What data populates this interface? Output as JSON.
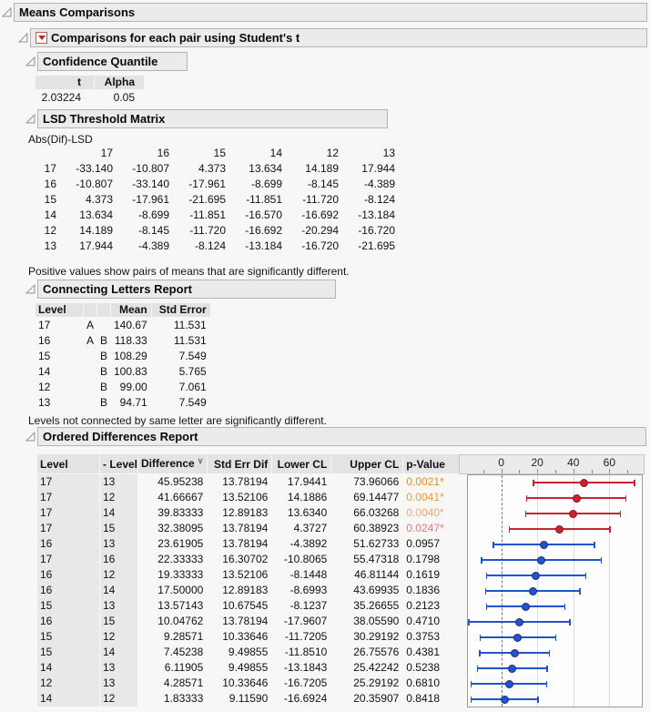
{
  "icons": {
    "disclosure_open": "open-disclosure-triangle",
    "red_triangle_menu": "▼",
    "sort_descending": "∨"
  },
  "colors": {
    "page_bg": "#f7f7f6",
    "panel_bg": "#ebebeb",
    "panel_border": "#b4b4b4",
    "header_cell_bg": "#e3e3e3",
    "label_col_bg": "#e8e8e8",
    "significant_red": "#cb2431",
    "red_dot_border": "#7e141f",
    "nonsignificant_blue": "#2353cc",
    "blue_dot_border": "#142f7a",
    "p_value_colors": [
      "#e78c1e",
      "#ee9a3c",
      "#f3a770",
      "#f67082"
    ]
  },
  "outline1": {
    "title": "Means Comparisons"
  },
  "outline2": {
    "title": "Comparisons for each pair using Student's t"
  },
  "confidence_quantile": {
    "title": "Confidence Quantile",
    "columns": [
      "t",
      "Alpha"
    ],
    "rows": [
      [
        "2.03224",
        "0.05"
      ]
    ]
  },
  "lsd_matrix": {
    "title": "LSD Threshold Matrix",
    "label": "Abs(Dif)-LSD",
    "col_headers": [
      "17",
      "16",
      "15",
      "14",
      "12",
      "13"
    ],
    "rows": [
      {
        "label": "17",
        "values": [
          "-33.140",
          "-10.807",
          "4.373",
          "13.634",
          "14.189",
          "17.944"
        ]
      },
      {
        "label": "16",
        "values": [
          "-10.807",
          "-33.140",
          "-17.961",
          "-8.699",
          "-8.145",
          "-4.389"
        ]
      },
      {
        "label": "15",
        "values": [
          "4.373",
          "-17.961",
          "-21.695",
          "-11.851",
          "-11.720",
          "-8.124"
        ]
      },
      {
        "label": "14",
        "values": [
          "13.634",
          "-8.699",
          "-11.851",
          "-16.570",
          "-16.692",
          "-13.184"
        ]
      },
      {
        "label": "12",
        "values": [
          "14.189",
          "-8.145",
          "-11.720",
          "-16.692",
          "-20.294",
          "-16.720"
        ]
      },
      {
        "label": "13",
        "values": [
          "17.944",
          "-4.389",
          "-8.124",
          "-13.184",
          "-16.720",
          "-21.695"
        ]
      }
    ],
    "note": "Positive values show pairs of means that are significantly different."
  },
  "connecting_letters": {
    "title": "Connecting Letters Report",
    "columns": [
      "Level",
      "",
      "",
      "Mean",
      "Std Error"
    ],
    "rows": [
      {
        "level": "17",
        "letter1": "A",
        "letter2": "",
        "mean": "140.67",
        "std_error": "11.531"
      },
      {
        "level": "16",
        "letter1": "A",
        "letter2": "B",
        "mean": "118.33",
        "std_error": "11.531"
      },
      {
        "level": "15",
        "letter1": "",
        "letter2": "B",
        "mean": "108.29",
        "std_error": "7.549"
      },
      {
        "level": "14",
        "letter1": "",
        "letter2": "B",
        "mean": "100.83",
        "std_error": "5.765"
      },
      {
        "level": "12",
        "letter1": "",
        "letter2": "B",
        "mean": "99.00",
        "std_error": "7.061"
      },
      {
        "level": "13",
        "letter1": "",
        "letter2": "B",
        "mean": "94.71",
        "std_error": "7.549"
      }
    ],
    "note": "Levels not connected by same letter are significantly different."
  },
  "ordered_differences": {
    "title": "Ordered Differences Report",
    "columns": [
      "Level",
      "- Level",
      "Difference",
      "Std Err Dif",
      "Lower CL",
      "Upper CL",
      "p-Value"
    ],
    "sorted_column": "Difference",
    "rows": [
      {
        "level": "17",
        "minus_level": "13",
        "difference": "45.95238",
        "std_err_dif": "13.78194",
        "lower_cl": "17.9441",
        "upper_cl": "73.96066",
        "p_value": "0.0021*",
        "p_color": "#e78c1e"
      },
      {
        "level": "17",
        "minus_level": "12",
        "difference": "41.66667",
        "std_err_dif": "13.52106",
        "lower_cl": "14.1886",
        "upper_cl": "69.14477",
        "p_value": "0.0041*",
        "p_color": "#ee9a3c"
      },
      {
        "level": "17",
        "minus_level": "14",
        "difference": "39.83333",
        "std_err_dif": "12.89183",
        "lower_cl": "13.6340",
        "upper_cl": "66.03268",
        "p_value": "0.0040*",
        "p_color": "#f3a770"
      },
      {
        "level": "17",
        "minus_level": "15",
        "difference": "32.38095",
        "std_err_dif": "13.78194",
        "lower_cl": "4.3727",
        "upper_cl": "60.38923",
        "p_value": "0.0247*",
        "p_color": "#f67082"
      },
      {
        "level": "16",
        "minus_level": "13",
        "difference": "23.61905",
        "std_err_dif": "13.78194",
        "lower_cl": "-4.3892",
        "upper_cl": "51.62733",
        "p_value": "0.0957",
        "p_color": null
      },
      {
        "level": "17",
        "minus_level": "16",
        "difference": "22.33333",
        "std_err_dif": "16.30702",
        "lower_cl": "-10.8065",
        "upper_cl": "55.47318",
        "p_value": "0.1798",
        "p_color": null
      },
      {
        "level": "16",
        "minus_level": "12",
        "difference": "19.33333",
        "std_err_dif": "13.52106",
        "lower_cl": "-8.1448",
        "upper_cl": "46.81144",
        "p_value": "0.1619",
        "p_color": null
      },
      {
        "level": "16",
        "minus_level": "14",
        "difference": "17.50000",
        "std_err_dif": "12.89183",
        "lower_cl": "-8.6993",
        "upper_cl": "43.69935",
        "p_value": "0.1836",
        "p_color": null
      },
      {
        "level": "15",
        "minus_level": "13",
        "difference": "13.57143",
        "std_err_dif": "10.67545",
        "lower_cl": "-8.1237",
        "upper_cl": "35.26655",
        "p_value": "0.2123",
        "p_color": null
      },
      {
        "level": "16",
        "minus_level": "15",
        "difference": "10.04762",
        "std_err_dif": "13.78194",
        "lower_cl": "-17.9607",
        "upper_cl": "38.05590",
        "p_value": "0.4710",
        "p_color": null
      },
      {
        "level": "15",
        "minus_level": "12",
        "difference": "9.28571",
        "std_err_dif": "10.33646",
        "lower_cl": "-11.7205",
        "upper_cl": "30.29192",
        "p_value": "0.3753",
        "p_color": null
      },
      {
        "level": "15",
        "minus_level": "14",
        "difference": "7.45238",
        "std_err_dif": "9.49855",
        "lower_cl": "-11.8510",
        "upper_cl": "26.75576",
        "p_value": "0.4381",
        "p_color": null
      },
      {
        "level": "14",
        "minus_level": "13",
        "difference": "6.11905",
        "std_err_dif": "9.49855",
        "lower_cl": "-13.1843",
        "upper_cl": "25.42242",
        "p_value": "0.5238",
        "p_color": null
      },
      {
        "level": "12",
        "minus_level": "13",
        "difference": "4.28571",
        "std_err_dif": "10.33646",
        "lower_cl": "-16.7205",
        "upper_cl": "25.29192",
        "p_value": "0.6810",
        "p_color": null
      },
      {
        "level": "14",
        "minus_level": "12",
        "difference": "1.83333",
        "std_err_dif": "9.11590",
        "lower_cl": "-16.6924",
        "upper_cl": "20.35907",
        "p_value": "0.8418",
        "p_color": null
      }
    ]
  },
  "chart_data": {
    "type": "interval",
    "title": "Student's t pairwise mean-difference confidence intervals",
    "xlim": [
      -18.5,
      78
    ],
    "x_ticks_labeled": [
      0,
      20,
      40,
      60
    ],
    "x_ticks_minor": [
      -10,
      10,
      30,
      50,
      70
    ],
    "gridlines": [
      20,
      40,
      60
    ],
    "reference_line": 0,
    "legend_position": "none",
    "rows": [
      {
        "pair": "17-13",
        "difference": 45.95238,
        "lower": 17.9441,
        "upper": 73.96066,
        "significant": true
      },
      {
        "pair": "17-12",
        "difference": 41.66667,
        "lower": 14.1886,
        "upper": 69.14477,
        "significant": true
      },
      {
        "pair": "17-14",
        "difference": 39.83333,
        "lower": 13.634,
        "upper": 66.03268,
        "significant": true
      },
      {
        "pair": "17-15",
        "difference": 32.38095,
        "lower": 4.3727,
        "upper": 60.38923,
        "significant": true
      },
      {
        "pair": "16-13",
        "difference": 23.61905,
        "lower": -4.3892,
        "upper": 51.62733,
        "significant": false
      },
      {
        "pair": "17-16",
        "difference": 22.33333,
        "lower": -10.8065,
        "upper": 55.47318,
        "significant": false
      },
      {
        "pair": "16-12",
        "difference": 19.33333,
        "lower": -8.1448,
        "upper": 46.81144,
        "significant": false
      },
      {
        "pair": "16-14",
        "difference": 17.5,
        "lower": -8.6993,
        "upper": 43.69935,
        "significant": false
      },
      {
        "pair": "15-13",
        "difference": 13.57143,
        "lower": -8.1237,
        "upper": 35.26655,
        "significant": false
      },
      {
        "pair": "16-15",
        "difference": 10.04762,
        "lower": -17.9607,
        "upper": 38.0559,
        "significant": false
      },
      {
        "pair": "15-12",
        "difference": 9.28571,
        "lower": -11.7205,
        "upper": 30.29192,
        "significant": false
      },
      {
        "pair": "15-14",
        "difference": 7.45238,
        "lower": -11.851,
        "upper": 26.75576,
        "significant": false
      },
      {
        "pair": "14-13",
        "difference": 6.11905,
        "lower": -13.1843,
        "upper": 25.42242,
        "significant": false
      },
      {
        "pair": "12-13",
        "difference": 4.28571,
        "lower": -16.7205,
        "upper": 25.29192,
        "significant": false
      },
      {
        "pair": "14-12",
        "difference": 1.83333,
        "lower": -16.6924,
        "upper": 20.35907,
        "significant": false
      }
    ]
  }
}
